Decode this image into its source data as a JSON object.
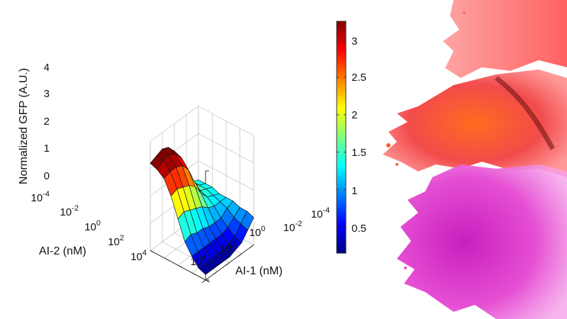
{
  "chart_data": {
    "type": "surface",
    "title": "",
    "zlabel": "Normalized GFP (A.U.)",
    "xlabel": "AI-1 (nM)",
    "ylabel": "AI-2 (nM)",
    "zlim": [
      0,
      4
    ],
    "z_ticks": [
      "0",
      "1",
      "2",
      "3",
      "4"
    ],
    "x_ticks": [
      {
        "base": "10",
        "exp": "-4"
      },
      {
        "base": "10",
        "exp": "-2"
      },
      {
        "base": "10",
        "exp": "0"
      },
      {
        "base": "10",
        "exp": "2"
      },
      {
        "base": "10",
        "exp": "4"
      }
    ],
    "y_ticks": [
      {
        "base": "10",
        "exp": "-4"
      },
      {
        "base": "10",
        "exp": "-2"
      },
      {
        "base": "10",
        "exp": "0"
      },
      {
        "base": "10",
        "exp": "2"
      },
      {
        "base": "10",
        "exp": "4"
      }
    ],
    "log_ai1_nM": [
      -4,
      -3,
      -2,
      -1,
      0,
      1,
      2,
      3,
      4
    ],
    "log_ai2_nM": [
      -4,
      -3,
      -2,
      -1,
      0,
      1,
      2,
      3,
      4
    ],
    "gfp_rows_by_ai2": [
      [
        1.3,
        1.4,
        1.6,
        2.3,
        3.0,
        3.3,
        3.4,
        3.3,
        3.2
      ],
      [
        1.3,
        1.4,
        1.6,
        2.2,
        2.9,
        3.2,
        3.3,
        3.3,
        3.1
      ],
      [
        1.3,
        1.4,
        1.5,
        2.0,
        2.6,
        2.9,
        3.0,
        3.0,
        2.9
      ],
      [
        1.2,
        1.3,
        1.4,
        1.7,
        2.1,
        2.3,
        2.4,
        2.5,
        2.4
      ],
      [
        1.2,
        1.2,
        1.2,
        1.3,
        1.5,
        1.6,
        1.7,
        1.8,
        1.7
      ],
      [
        1.2,
        1.1,
        0.9,
        0.9,
        0.9,
        1.0,
        1.0,
        1.1,
        1.0
      ],
      [
        1.1,
        0.9,
        0.7,
        0.6,
        0.6,
        0.6,
        0.6,
        0.6,
        0.6
      ],
      [
        1.1,
        0.8,
        0.5,
        0.4,
        0.3,
        0.3,
        0.3,
        0.3,
        0.3
      ],
      [
        1.0,
        0.7,
        0.4,
        0.3,
        0.2,
        0.2,
        0.2,
        0.2,
        0.2
      ]
    ],
    "colorbar": {
      "colormap": "jet",
      "range": [
        0.15,
        3.25
      ],
      "ticks": [
        "0.5",
        "1",
        "1.5",
        "2",
        "2.5",
        "3"
      ]
    },
    "grid": true
  }
}
